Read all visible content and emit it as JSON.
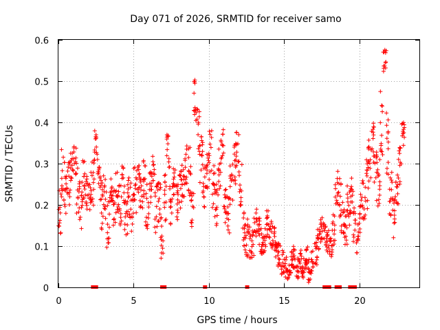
{
  "chart_data": {
    "type": "scatter",
    "title": "Day 071 of 2026, SRMTID for receiver samo",
    "xlabel": "GPS time / hours",
    "ylabel": "SRMTID / TECUs",
    "xlim": [
      0,
      24
    ],
    "ylim": [
      0,
      0.6
    ],
    "xticks": [
      0,
      5,
      10,
      15,
      20
    ],
    "xtick_labels": [
      "0",
      "5",
      "10",
      "15",
      "20"
    ],
    "yticks": [
      0,
      0.1,
      0.2,
      0.3,
      0.4,
      0.5,
      0.6
    ],
    "ytick_labels": [
      "0",
      "0.1",
      "0.2",
      "0.3",
      "0.4",
      "0.5",
      "0.6"
    ],
    "grid": true,
    "marker": "+",
    "color": "#ff0000",
    "series": [
      {
        "name": "SRMTID",
        "x": [
          0.0,
          0.2,
          0.4,
          0.6,
          0.8,
          1.0,
          1.2,
          1.4,
          1.6,
          1.8,
          2.0,
          2.2,
          2.4,
          2.6,
          2.8,
          3.0,
          3.2,
          3.4,
          3.6,
          3.8,
          4.0,
          4.2,
          4.4,
          4.6,
          4.8,
          5.0,
          5.2,
          5.4,
          5.6,
          5.8,
          6.0,
          6.2,
          6.4,
          6.6,
          6.8,
          7.0,
          7.2,
          7.4,
          7.6,
          7.8,
          8.0,
          8.2,
          8.4,
          8.6,
          8.8,
          9.0,
          9.2,
          9.4,
          9.6,
          9.8,
          10.0,
          10.2,
          10.4,
          10.6,
          10.8,
          11.0,
          11.2,
          11.4,
          11.6,
          11.8,
          12.0,
          12.2,
          12.4,
          12.6,
          12.8,
          13.0,
          13.2,
          13.4,
          13.6,
          13.8,
          14.0,
          14.2,
          14.4,
          14.6,
          14.8,
          15.0,
          15.2,
          15.4,
          15.6,
          15.8,
          16.0,
          16.2,
          16.4,
          16.6,
          16.8,
          17.0,
          17.2,
          17.4,
          17.6,
          17.8,
          18.0,
          18.2,
          18.4,
          18.6,
          18.8,
          19.0,
          19.2,
          19.4,
          19.6,
          19.8,
          20.0,
          20.2,
          20.4,
          20.6,
          20.8,
          21.0,
          21.2,
          21.4,
          21.6,
          21.8,
          22.0,
          22.2,
          22.4,
          22.6,
          22.8
        ],
        "y": [
          0.18,
          0.27,
          0.22,
          0.25,
          0.3,
          0.31,
          0.24,
          0.2,
          0.26,
          0.22,
          0.23,
          0.25,
          0.34,
          0.25,
          0.2,
          0.22,
          0.15,
          0.24,
          0.19,
          0.22,
          0.2,
          0.25,
          0.18,
          0.22,
          0.2,
          0.24,
          0.26,
          0.23,
          0.26,
          0.19,
          0.22,
          0.28,
          0.19,
          0.21,
          0.12,
          0.22,
          0.33,
          0.2,
          0.26,
          0.2,
          0.24,
          0.26,
          0.3,
          0.28,
          0.18,
          0.45,
          0.38,
          0.32,
          0.25,
          0.28,
          0.33,
          0.25,
          0.2,
          0.28,
          0.35,
          0.2,
          0.17,
          0.25,
          0.3,
          0.33,
          0.25,
          0.15,
          0.12,
          0.11,
          0.1,
          0.15,
          0.14,
          0.12,
          0.1,
          0.16,
          0.13,
          0.12,
          0.1,
          0.08,
          0.06,
          0.05,
          0.04,
          0.06,
          0.07,
          0.05,
          0.06,
          0.05,
          0.07,
          0.04,
          0.06,
          0.08,
          0.12,
          0.14,
          0.13,
          0.11,
          0.1,
          0.14,
          0.25,
          0.22,
          0.18,
          0.15,
          0.2,
          0.22,
          0.15,
          0.12,
          0.18,
          0.22,
          0.25,
          0.3,
          0.35,
          0.27,
          0.25,
          0.4,
          0.55,
          0.35,
          0.22,
          0.17,
          0.25,
          0.3,
          0.38
        ],
        "spread": [
          0.06,
          0.07,
          0.05,
          0.06,
          0.05,
          0.05,
          0.06,
          0.06,
          0.05,
          0.05,
          0.05,
          0.06,
          0.04,
          0.05,
          0.06,
          0.06,
          0.06,
          0.05,
          0.05,
          0.06,
          0.05,
          0.05,
          0.06,
          0.06,
          0.07,
          0.06,
          0.05,
          0.04,
          0.05,
          0.06,
          0.06,
          0.05,
          0.06,
          0.05,
          0.05,
          0.06,
          0.04,
          0.05,
          0.04,
          0.05,
          0.05,
          0.04,
          0.05,
          0.06,
          0.05,
          0.06,
          0.06,
          0.07,
          0.07,
          0.06,
          0.07,
          0.06,
          0.05,
          0.06,
          0.05,
          0.05,
          0.05,
          0.05,
          0.05,
          0.05,
          0.06,
          0.05,
          0.05,
          0.04,
          0.04,
          0.04,
          0.04,
          0.04,
          0.05,
          0.04,
          0.03,
          0.03,
          0.03,
          0.03,
          0.03,
          0.03,
          0.02,
          0.03,
          0.03,
          0.03,
          0.03,
          0.03,
          0.03,
          0.03,
          0.03,
          0.03,
          0.03,
          0.03,
          0.03,
          0.03,
          0.03,
          0.04,
          0.05,
          0.05,
          0.05,
          0.05,
          0.05,
          0.05,
          0.05,
          0.04,
          0.05,
          0.06,
          0.06,
          0.06,
          0.05,
          0.06,
          0.06,
          0.08,
          0.03,
          0.08,
          0.06,
          0.05,
          0.05,
          0.05,
          0.04
        ]
      }
    ],
    "zero_markers_x": [
      2.3,
      2.4,
      2.5,
      6.9,
      7.05,
      9.75,
      12.55,
      17.7,
      17.85,
      18.0,
      18.5,
      18.6,
      18.7,
      19.4,
      19.5,
      19.6,
      19.7
    ]
  }
}
